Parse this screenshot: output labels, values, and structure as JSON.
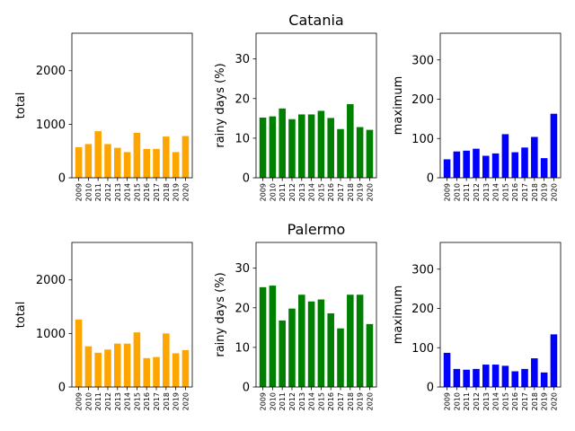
{
  "chart_data": [
    {
      "type": "bar",
      "city": "Catania",
      "metric": "total",
      "title": "",
      "ylabel": "total",
      "ylim": [
        0,
        2700
      ],
      "yticks": [
        0,
        1000,
        2000
      ],
      "color": "#ffa500",
      "categories": [
        "2009",
        "2010",
        "2011",
        "2012",
        "2013",
        "2014",
        "2015",
        "2016",
        "2017",
        "2018",
        "2019",
        "2020"
      ],
      "values": [
        570,
        630,
        870,
        630,
        560,
        480,
        840,
        540,
        540,
        770,
        480,
        780
      ]
    },
    {
      "type": "bar",
      "city": "Catania",
      "metric": "rainy days (%)",
      "title": "Catania",
      "ylabel": "rainy days (%)",
      "ylim": [
        0,
        36.5
      ],
      "yticks": [
        0,
        10,
        20,
        30
      ],
      "color": "#008000",
      "categories": [
        "2009",
        "2010",
        "2011",
        "2012",
        "2013",
        "2014",
        "2015",
        "2016",
        "2017",
        "2018",
        "2019",
        "2020"
      ],
      "values": [
        15.2,
        15.5,
        17.5,
        14.8,
        16.0,
        16.0,
        16.9,
        15.1,
        12.3,
        18.6,
        12.8,
        12.1
      ]
    },
    {
      "type": "bar",
      "city": "Catania",
      "metric": "maximum",
      "title": "",
      "ylabel": "maximum",
      "ylim": [
        0,
        368
      ],
      "yticks": [
        0,
        100,
        200,
        300
      ],
      "color": "#0000ff",
      "categories": [
        "2009",
        "2010",
        "2011",
        "2012",
        "2013",
        "2014",
        "2015",
        "2016",
        "2017",
        "2018",
        "2019",
        "2020"
      ],
      "values": [
        47,
        67,
        69,
        74,
        56,
        62,
        111,
        65,
        77,
        104,
        50,
        163
      ]
    },
    {
      "type": "bar",
      "city": "Palermo",
      "metric": "total",
      "title": "",
      "ylabel": "total",
      "ylim": [
        0,
        2700
      ],
      "yticks": [
        0,
        1000,
        2000
      ],
      "color": "#ffa500",
      "categories": [
        "2009",
        "2010",
        "2011",
        "2012",
        "2013",
        "2014",
        "2015",
        "2016",
        "2017",
        "2018",
        "2019",
        "2020"
      ],
      "values": [
        1260,
        760,
        640,
        700,
        810,
        810,
        1020,
        540,
        560,
        1000,
        630,
        690
      ]
    },
    {
      "type": "bar",
      "city": "Palermo",
      "metric": "rainy days (%)",
      "title": "Palermo",
      "ylabel": "rainy days (%)",
      "ylim": [
        0,
        36.5
      ],
      "yticks": [
        0,
        10,
        20,
        30
      ],
      "color": "#008000",
      "categories": [
        "2009",
        "2010",
        "2011",
        "2012",
        "2013",
        "2014",
        "2015",
        "2016",
        "2017",
        "2018",
        "2019",
        "2020"
      ],
      "values": [
        25.2,
        25.6,
        16.8,
        19.8,
        23.3,
        21.6,
        22.1,
        18.6,
        14.8,
        23.3,
        23.3,
        15.9
      ]
    },
    {
      "type": "bar",
      "city": "Palermo",
      "metric": "maximum",
      "title": "",
      "ylabel": "maximum",
      "ylim": [
        0,
        368
      ],
      "yticks": [
        0,
        100,
        200,
        300
      ],
      "color": "#0000ff",
      "categories": [
        "2009",
        "2010",
        "2011",
        "2012",
        "2013",
        "2014",
        "2015",
        "2016",
        "2017",
        "2018",
        "2019",
        "2020"
      ],
      "values": [
        87,
        46,
        44,
        46,
        57,
        57,
        54,
        40,
        46,
        73,
        37,
        134
      ]
    }
  ]
}
